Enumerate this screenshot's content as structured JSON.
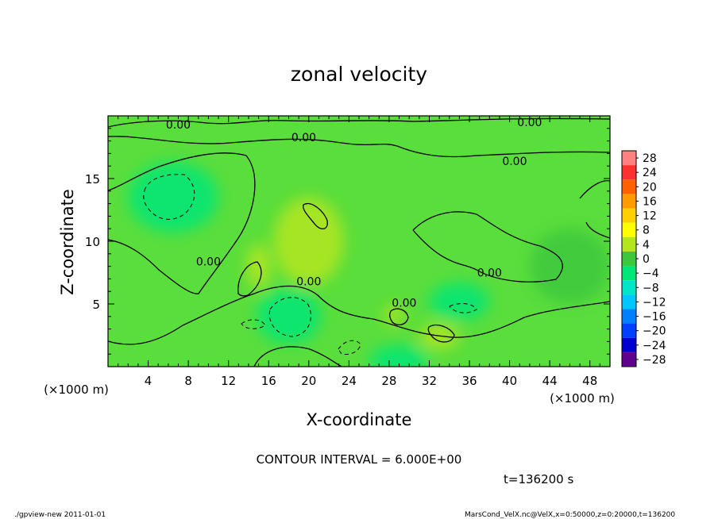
{
  "chart_data": {
    "type": "heatmap",
    "title": "zonal velocity",
    "xlabel": "X-coordinate",
    "ylabel": "Z-coordinate",
    "x_unit_label": "(×1000 m)",
    "y_unit_label": "(×1000 m)",
    "xlim": [
      0,
      50
    ],
    "ylim": [
      0,
      20
    ],
    "x_ticks": [
      4,
      8,
      12,
      16,
      20,
      24,
      28,
      32,
      36,
      40,
      44,
      48
    ],
    "y_ticks": [
      5,
      10,
      15
    ],
    "colorbar": {
      "levels": [
        28,
        24,
        20,
        16,
        12,
        8,
        4,
        0,
        -4,
        -8,
        -12,
        -16,
        -20,
        -24,
        -28
      ],
      "labels": [
        "28",
        "24",
        "20",
        "16",
        "12",
        "8",
        "4",
        "0",
        "−4",
        "−8",
        "−12",
        "−16",
        "−20",
        "−24",
        "−28"
      ],
      "colors": [
        "#ff8080",
        "#ff3030",
        "#ff6000",
        "#ff9a00",
        "#ffd000",
        "#ffff00",
        "#b4e61e",
        "#3cc83c",
        "#00e678",
        "#00e6c8",
        "#00c8ff",
        "#0080ff",
        "#0040ff",
        "#0000d0",
        "#600090"
      ]
    },
    "contour_interval_text": "CONTOUR INTERVAL = 6.000E+00",
    "contour_labels": [
      "0.00",
      "0.00",
      "0.00",
      "0.00",
      "0.00",
      "0.00",
      "0.00",
      "0.00"
    ],
    "blobs": [
      {
        "x": 6.5,
        "z": 13.5,
        "rx": 4.5,
        "rz": 2.8,
        "level": -6
      },
      {
        "x": 18,
        "z": 4,
        "rx": 3.2,
        "rz": 2.2,
        "level": -6
      },
      {
        "x": 29,
        "z": 0.5,
        "rx": 3.0,
        "rz": 1.2,
        "level": -5
      },
      {
        "x": 35,
        "z": 5.2,
        "rx": 3.0,
        "rz": 1.5,
        "level": -4
      },
      {
        "x": 20,
        "z": 10,
        "rx": 3.5,
        "rz": 3.5,
        "level": 3
      },
      {
        "x": 33,
        "z": 2.4,
        "rx": 2.0,
        "rz": 1.0,
        "level": 4
      },
      {
        "x": 28.5,
        "z": 4.1,
        "rx": 1.0,
        "rz": 0.8,
        "level": 3
      },
      {
        "x": 15,
        "z": 8,
        "rx": 1.2,
        "rz": 1.8,
        "level": 3
      },
      {
        "x": 46,
        "z": 8,
        "rx": 4,
        "rz": 3,
        "level": -2
      }
    ]
  },
  "time_label": "t=136200 s",
  "footer": {
    "left": "./gpview-new   2011-01-01",
    "right": "MarsCond_VelX.nc@VelX,x=0:50000,z=0:20000,t=136200"
  }
}
